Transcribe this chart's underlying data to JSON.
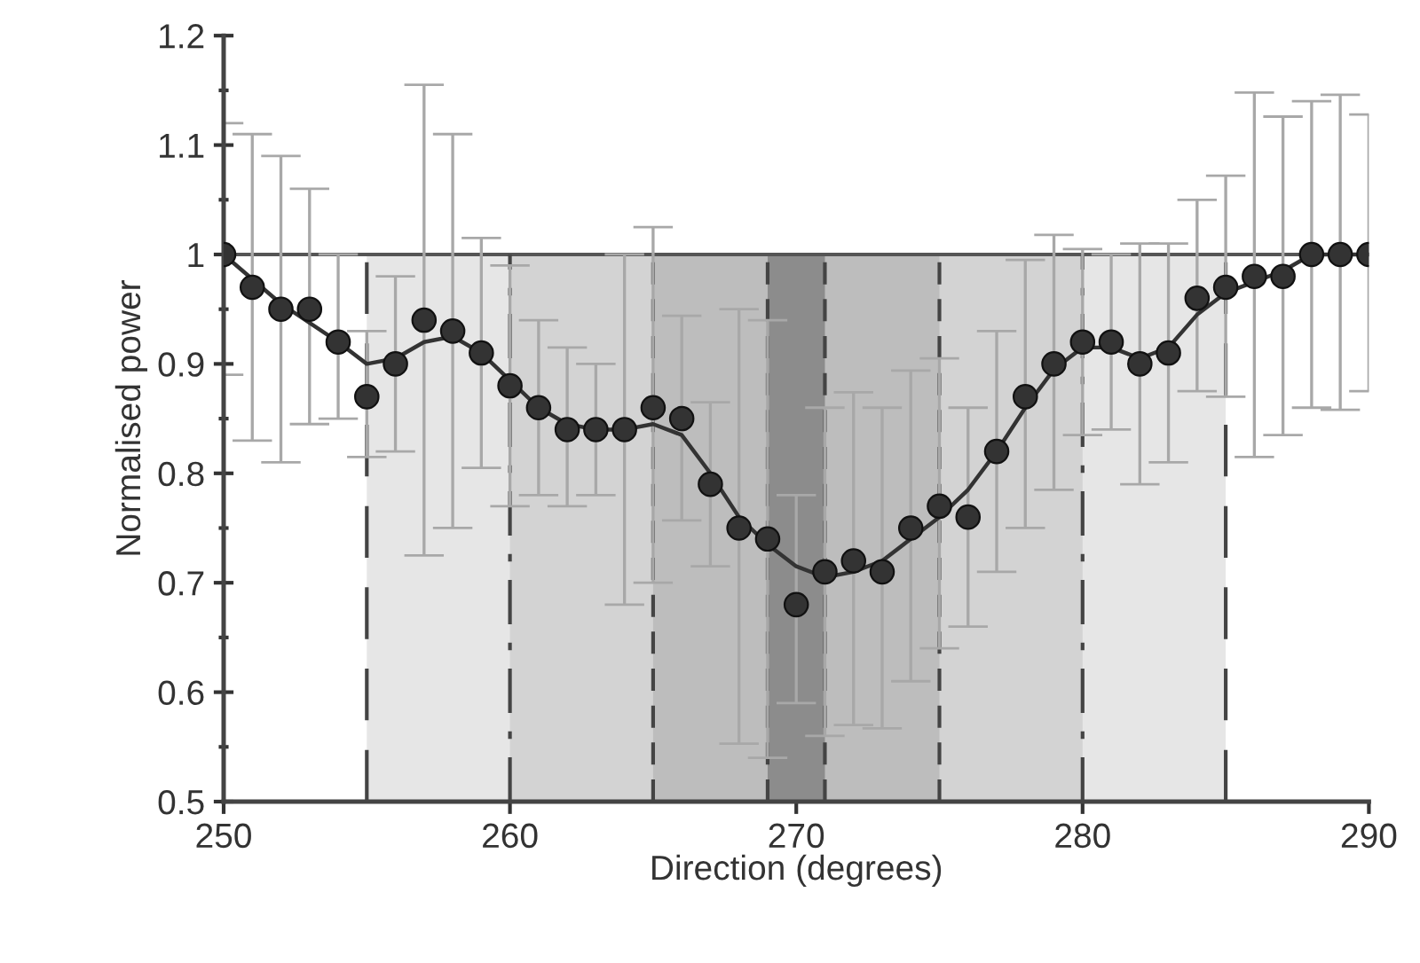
{
  "chart_data": {
    "type": "scatter",
    "xlabel": "Direction (degrees)",
    "ylabel": "Normalised power",
    "xlim": [
      250,
      290
    ],
    "xticks": [
      250,
      260,
      270,
      280,
      290
    ],
    "ylim": [
      0.5,
      1.2
    ],
    "yticks": [
      0.5,
      0.6,
      0.7,
      0.8,
      0.9,
      {
        "value": 1.0,
        "label": "1"
      },
      1.1,
      1.2
    ],
    "grid": false,
    "legend": false,
    "marker": "circle",
    "series": [
      {
        "color": "#333333",
        "x": [
          250,
          251,
          252,
          253,
          254,
          255,
          256,
          257,
          258,
          259,
          260,
          261,
          262,
          263,
          264,
          265,
          266,
          267,
          268,
          269,
          270,
          271,
          272,
          273,
          274,
          275,
          276,
          277,
          278,
          279,
          280,
          281,
          282,
          283,
          284,
          285,
          286,
          287,
          288,
          289,
          290
        ],
        "values": [
          1.0,
          0.97,
          0.95,
          0.95,
          0.92,
          0.87,
          0.9,
          0.94,
          0.93,
          0.91,
          0.88,
          0.86,
          0.84,
          0.84,
          0.84,
          0.86,
          0.85,
          0.79,
          0.75,
          0.74,
          0.68,
          0.71,
          0.72,
          0.71,
          0.75,
          0.77,
          0.76,
          0.82,
          0.87,
          0.9,
          0.92,
          0.92,
          0.9,
          0.91,
          0.96,
          0.97,
          0.98,
          0.98,
          1.0,
          1.0,
          1.0
        ],
        "errors": [
          [
            0.89,
            1.12
          ],
          [
            0.83,
            1.11
          ],
          [
            0.81,
            1.09
          ],
          [
            0.845,
            1.06
          ],
          [
            0.85,
            1.0
          ],
          [
            0.815,
            0.93
          ],
          [
            0.82,
            0.98
          ],
          [
            0.725,
            1.155
          ],
          [
            0.75,
            1.11
          ],
          [
            0.805,
            1.015
          ],
          [
            0.77,
            0.99
          ],
          [
            0.78,
            0.94
          ],
          [
            0.77,
            0.915
          ],
          [
            0.78,
            0.9
          ],
          [
            0.68,
            1.0
          ],
          [
            0.7,
            1.025
          ],
          [
            0.757,
            0.944
          ],
          [
            0.715,
            0.865
          ],
          [
            0.553,
            0.95
          ],
          [
            0.54,
            0.94
          ],
          [
            0.59,
            0.78
          ],
          [
            0.56,
            0.86
          ],
          [
            0.57,
            0.874
          ],
          [
            0.567,
            0.86
          ],
          [
            0.61,
            0.894
          ],
          [
            0.64,
            0.905
          ],
          [
            0.66,
            0.86
          ],
          [
            0.71,
            0.93
          ],
          [
            0.75,
            0.995
          ],
          [
            0.785,
            1.018
          ],
          [
            0.835,
            1.005
          ],
          [
            0.84,
            1.0
          ],
          [
            0.79,
            1.01
          ],
          [
            0.81,
            1.01
          ],
          [
            0.875,
            1.05
          ],
          [
            0.87,
            1.072
          ],
          [
            0.815,
            1.148
          ],
          [
            0.835,
            1.126
          ],
          [
            0.86,
            1.14
          ],
          [
            0.858,
            1.146
          ],
          [
            0.875,
            1.128
          ]
        ]
      },
      {
        "type": "line",
        "color": "#333333",
        "marker": "none",
        "x": [
          250,
          252,
          254,
          255,
          256,
          257,
          258,
          259,
          260,
          261,
          262,
          263,
          264,
          265,
          266,
          267,
          268,
          269,
          270,
          271,
          272,
          273,
          274,
          275,
          276,
          277,
          278,
          279,
          280,
          281,
          282,
          283,
          284,
          285,
          286,
          287,
          288,
          290
        ],
        "values": [
          1.0,
          0.955,
          0.92,
          0.9,
          0.905,
          0.92,
          0.925,
          0.91,
          0.885,
          0.86,
          0.845,
          0.84,
          0.84,
          0.845,
          0.835,
          0.8,
          0.76,
          0.735,
          0.715,
          0.705,
          0.71,
          0.72,
          0.74,
          0.76,
          0.785,
          0.82,
          0.86,
          0.895,
          0.915,
          0.915,
          0.905,
          0.915,
          0.945,
          0.965,
          0.975,
          0.985,
          1.0,
          1.0
        ]
      }
    ],
    "bands": [
      {
        "axis": "x",
        "from": 255,
        "to": 285,
        "color": "#e6e6e6"
      },
      {
        "axis": "x",
        "from": 260,
        "to": 280,
        "color": "#d3d3d3"
      },
      {
        "axis": "x",
        "from": 265,
        "to": 275,
        "color": "#bdbdbd"
      },
      {
        "axis": "x",
        "from": 269,
        "to": 271,
        "color": "#8c8c8c"
      }
    ],
    "ref_lines": [
      {
        "axis": "y",
        "value": 1.0,
        "color": "#555555",
        "line_style": "solid"
      },
      {
        "axis": "x",
        "value": 255,
        "color": "#444444",
        "line_style": "longdash"
      },
      {
        "axis": "x",
        "value": 285,
        "color": "#444444",
        "line_style": "longdash"
      },
      {
        "axis": "x",
        "value": 260,
        "color": "#444444",
        "line_style": "dashdot"
      },
      {
        "axis": "x",
        "value": 280,
        "color": "#444444",
        "line_style": "dashdot"
      },
      {
        "axis": "x",
        "value": 265,
        "color": "#444444",
        "line_style": "dashed"
      },
      {
        "axis": "x",
        "value": 275,
        "color": "#444444",
        "line_style": "dashed"
      },
      {
        "axis": "x",
        "value": 269,
        "color": "#444444",
        "line_style": "dashed"
      },
      {
        "axis": "x",
        "value": 271,
        "color": "#444444",
        "line_style": "dashed"
      }
    ]
  }
}
